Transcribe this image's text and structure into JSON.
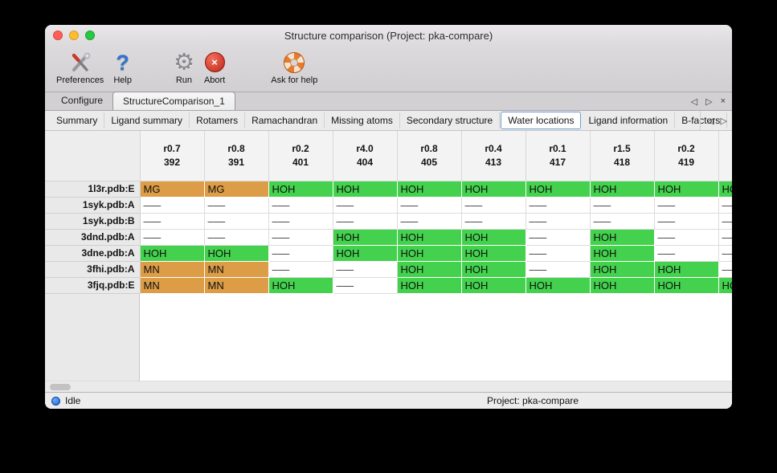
{
  "window": {
    "title": "Structure comparison (Project: pka-compare)"
  },
  "toolbar": {
    "items": [
      {
        "label": "Preferences"
      },
      {
        "label": "Help"
      },
      {
        "label": "Run"
      },
      {
        "label": "Abort"
      },
      {
        "label": "Ask for help"
      }
    ]
  },
  "tabs": {
    "items": [
      {
        "label": "Configure",
        "selected": false
      },
      {
        "label": "StructureComparison_1",
        "selected": true
      }
    ]
  },
  "subtabs": {
    "items": [
      {
        "label": "Summary",
        "selected": false
      },
      {
        "label": "Ligand summary",
        "selected": false
      },
      {
        "label": "Rotamers",
        "selected": false
      },
      {
        "label": "Ramachandran",
        "selected": false
      },
      {
        "label": "Missing atoms",
        "selected": false
      },
      {
        "label": "Secondary structure",
        "selected": false
      },
      {
        "label": "Water locations",
        "selected": true
      },
      {
        "label": "Ligand information",
        "selected": false
      },
      {
        "label": "B-factors",
        "selected": false
      }
    ]
  },
  "icons": {
    "left_arrow": "◁",
    "right_arrow": "▷",
    "close": "×",
    "help_glyph": "?",
    "gear_glyph": "⚙",
    "abort_glyph": "×"
  },
  "table": {
    "columns": [
      {
        "line1": "r0.7",
        "line2": "392"
      },
      {
        "line1": "r0.8",
        "line2": "391"
      },
      {
        "line1": "r0.2",
        "line2": "401"
      },
      {
        "line1": "r4.0",
        "line2": "404"
      },
      {
        "line1": "r0.8",
        "line2": "405"
      },
      {
        "line1": "r0.4",
        "line2": "413"
      },
      {
        "line1": "r0.1",
        "line2": "417"
      },
      {
        "line1": "r1.5",
        "line2": "418"
      },
      {
        "line1": "r0.2",
        "line2": "419"
      },
      {
        "line1": "",
        "line2": ""
      }
    ],
    "rows": [
      {
        "label": "1l3r.pdb:E",
        "cells": [
          {
            "text": "MG",
            "type": "metal"
          },
          {
            "text": "MG",
            "type": "metal"
          },
          {
            "text": "HOH",
            "type": "water"
          },
          {
            "text": "HOH",
            "type": "water"
          },
          {
            "text": "HOH",
            "type": "water"
          },
          {
            "text": "HOH",
            "type": "water"
          },
          {
            "text": "HOH",
            "type": "water"
          },
          {
            "text": "HOH",
            "type": "water"
          },
          {
            "text": "HOH",
            "type": "water"
          },
          {
            "text": "HOH",
            "type": "water"
          }
        ]
      },
      {
        "label": "1syk.pdb:A",
        "cells": [
          {
            "text": "–––",
            "type": "empty"
          },
          {
            "text": "–––",
            "type": "empty"
          },
          {
            "text": "–––",
            "type": "empty"
          },
          {
            "text": "–––",
            "type": "empty"
          },
          {
            "text": "–––",
            "type": "empty"
          },
          {
            "text": "–––",
            "type": "empty"
          },
          {
            "text": "–––",
            "type": "empty"
          },
          {
            "text": "–––",
            "type": "empty"
          },
          {
            "text": "–––",
            "type": "empty"
          },
          {
            "text": "–––",
            "type": "empty"
          }
        ]
      },
      {
        "label": "1syk.pdb:B",
        "cells": [
          {
            "text": "–––",
            "type": "empty"
          },
          {
            "text": "–––",
            "type": "empty"
          },
          {
            "text": "–––",
            "type": "empty"
          },
          {
            "text": "–––",
            "type": "empty"
          },
          {
            "text": "–––",
            "type": "empty"
          },
          {
            "text": "–––",
            "type": "empty"
          },
          {
            "text": "–––",
            "type": "empty"
          },
          {
            "text": "–––",
            "type": "empty"
          },
          {
            "text": "–––",
            "type": "empty"
          },
          {
            "text": "–––",
            "type": "empty"
          }
        ]
      },
      {
        "label": "3dnd.pdb:A",
        "cells": [
          {
            "text": "–––",
            "type": "empty"
          },
          {
            "text": "–––",
            "type": "empty"
          },
          {
            "text": "–––",
            "type": "empty"
          },
          {
            "text": "HOH",
            "type": "water"
          },
          {
            "text": "HOH",
            "type": "water"
          },
          {
            "text": "HOH",
            "type": "water"
          },
          {
            "text": "–––",
            "type": "empty"
          },
          {
            "text": "HOH",
            "type": "water"
          },
          {
            "text": "–––",
            "type": "empty"
          },
          {
            "text": "–––",
            "type": "empty"
          }
        ]
      },
      {
        "label": "3dne.pdb:A",
        "cells": [
          {
            "text": "HOH",
            "type": "water"
          },
          {
            "text": "HOH",
            "type": "water"
          },
          {
            "text": "–––",
            "type": "empty"
          },
          {
            "text": "HOH",
            "type": "water"
          },
          {
            "text": "HOH",
            "type": "water"
          },
          {
            "text": "HOH",
            "type": "water"
          },
          {
            "text": "–––",
            "type": "empty"
          },
          {
            "text": "HOH",
            "type": "water"
          },
          {
            "text": "–––",
            "type": "empty"
          },
          {
            "text": "–––",
            "type": "empty"
          }
        ]
      },
      {
        "label": "3fhi.pdb:A",
        "cells": [
          {
            "text": "MN",
            "type": "metal"
          },
          {
            "text": "MN",
            "type": "metal"
          },
          {
            "text": "–––",
            "type": "empty"
          },
          {
            "text": "–––",
            "type": "empty"
          },
          {
            "text": "HOH",
            "type": "water"
          },
          {
            "text": "HOH",
            "type": "water"
          },
          {
            "text": "–––",
            "type": "empty"
          },
          {
            "text": "HOH",
            "type": "water"
          },
          {
            "text": "HOH",
            "type": "water"
          },
          {
            "text": "–––",
            "type": "empty"
          }
        ]
      },
      {
        "label": "3fjq.pdb:E",
        "cells": [
          {
            "text": "MN",
            "type": "metal"
          },
          {
            "text": "MN",
            "type": "metal"
          },
          {
            "text": "HOH",
            "type": "water"
          },
          {
            "text": "–––",
            "type": "empty"
          },
          {
            "text": "HOH",
            "type": "water"
          },
          {
            "text": "HOH",
            "type": "water"
          },
          {
            "text": "HOH",
            "type": "water"
          },
          {
            "text": "HOH",
            "type": "water"
          },
          {
            "text": "HOH",
            "type": "water"
          },
          {
            "text": "HOH",
            "type": "water"
          }
        ]
      }
    ]
  },
  "statusbar": {
    "status": "Idle",
    "project": "Project: pka-compare"
  },
  "colors": {
    "water_cell": "#43d14e",
    "metal_cell": "#dd9c46",
    "selected_subtab_border": "#6f9bd1"
  }
}
